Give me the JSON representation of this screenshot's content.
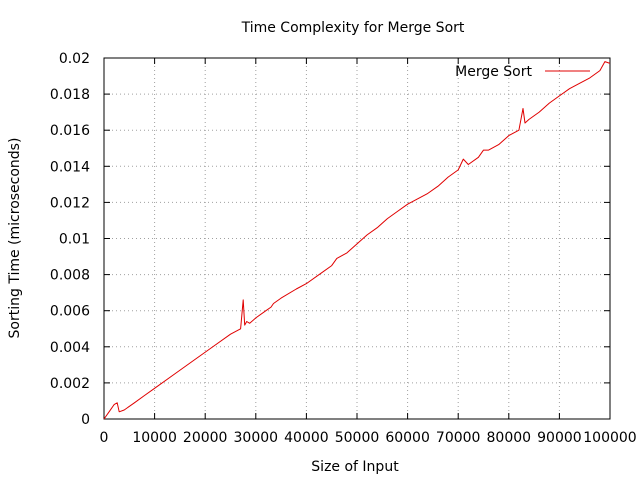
{
  "chart_data": {
    "type": "line",
    "title": "Time Complexity for Merge Sort",
    "xlabel": "Size of Input",
    "ylabel": "Sorting Time (microseconds)",
    "xlim": [
      0,
      100000
    ],
    "ylim": [
      0,
      0.02
    ],
    "x_ticks": [
      0,
      10000,
      20000,
      30000,
      40000,
      50000,
      60000,
      70000,
      80000,
      90000,
      100000
    ],
    "x_tick_labels": [
      "0",
      "10000",
      "20000",
      "30000",
      "40000",
      "50000",
      "60000",
      "70000",
      "80000",
      "90000",
      "100000"
    ],
    "y_ticks": [
      0,
      0.002,
      0.004,
      0.006,
      0.008,
      0.01,
      0.012,
      0.014,
      0.016,
      0.018,
      0.02
    ],
    "y_tick_labels": [
      "0",
      "0.002",
      "0.004",
      "0.006",
      "0.008",
      "0.01",
      "0.012",
      "0.014",
      "0.016",
      "0.018",
      "0.02"
    ],
    "grid": true,
    "grid_style": "dotted",
    "legend_position": "top-right",
    "series": [
      {
        "name": "Merge Sort",
        "color": "#e00000",
        "x": [
          0,
          1000,
          2000,
          2600,
          3000,
          4000,
          6000,
          8000,
          10000,
          14000,
          18000,
          22000,
          25000,
          27000,
          27500,
          27800,
          28200,
          28800,
          30000,
          32000,
          33000,
          33500,
          35000,
          38000,
          40000,
          43000,
          45000,
          46000,
          48000,
          50000,
          52000,
          54000,
          56000,
          58000,
          60000,
          62000,
          64000,
          66000,
          68000,
          70000,
          71000,
          72000,
          74000,
          75000,
          76000,
          78000,
          80000,
          82000,
          82800,
          83200,
          84000,
          86000,
          88000,
          90000,
          92000,
          94000,
          96000,
          98000,
          99000,
          100000
        ],
        "y": [
          0.0,
          0.0004,
          0.0008,
          0.0009,
          0.0004,
          0.0005,
          0.0009,
          0.0013,
          0.0017,
          0.0025,
          0.0033,
          0.0041,
          0.0047,
          0.005,
          0.0066,
          0.0052,
          0.0054,
          0.0053,
          0.0056,
          0.006,
          0.0062,
          0.0064,
          0.0067,
          0.0072,
          0.0075,
          0.0081,
          0.0085,
          0.0089,
          0.0092,
          0.0097,
          0.0102,
          0.0106,
          0.0111,
          0.0115,
          0.0119,
          0.0122,
          0.0125,
          0.0129,
          0.0134,
          0.0138,
          0.0144,
          0.0141,
          0.0145,
          0.0149,
          0.0149,
          0.0152,
          0.0157,
          0.016,
          0.0172,
          0.0164,
          0.0166,
          0.017,
          0.0175,
          0.0179,
          0.0183,
          0.0186,
          0.0189,
          0.0193,
          0.0198,
          0.0197
        ]
      }
    ]
  }
}
